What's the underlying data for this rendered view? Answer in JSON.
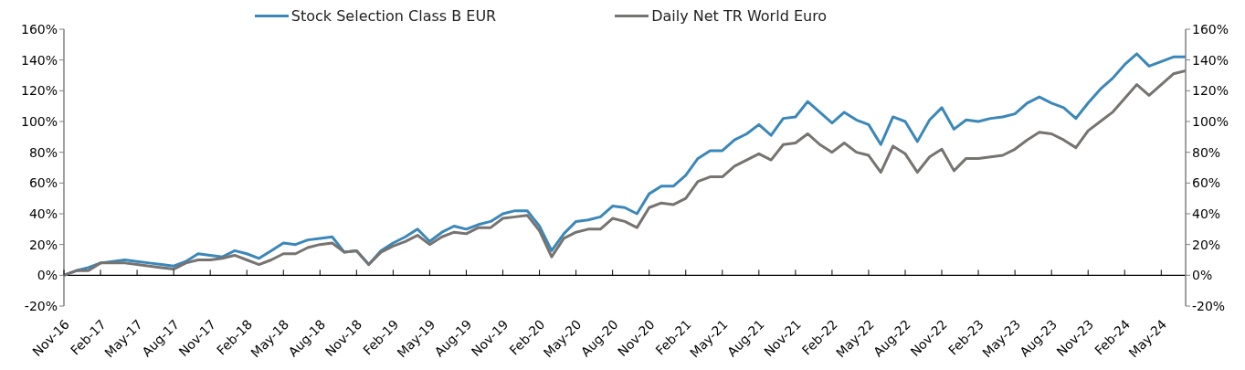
{
  "chart_data": {
    "type": "line",
    "categories": [
      "Nov-16",
      null,
      null,
      "Feb-17",
      null,
      null,
      "May-17",
      null,
      null,
      "Aug-17",
      null,
      null,
      "Nov-17",
      null,
      null,
      "Feb-18",
      null,
      null,
      "May-18",
      null,
      null,
      "Aug-18",
      null,
      null,
      "Nov-18",
      null,
      null,
      "Feb-19",
      null,
      null,
      "May-19",
      null,
      null,
      "Aug-19",
      null,
      null,
      "Nov-19",
      null,
      null,
      "Feb-20",
      null,
      null,
      "May-20",
      null,
      null,
      "Aug-20",
      null,
      null,
      "Nov-20",
      null,
      null,
      "Feb-21",
      null,
      null,
      "May-21",
      null,
      null,
      "Aug-21",
      null,
      null,
      "Nov-21",
      null,
      null,
      "Feb-22",
      null,
      null,
      "May-22",
      null,
      null,
      "Aug-22",
      null,
      null,
      "Nov-22",
      null,
      null,
      "Feb-23",
      null,
      null,
      "May-23",
      null,
      null,
      "Aug-23",
      null,
      null,
      "Nov-23",
      null,
      null,
      "Feb-24",
      null,
      null,
      "May-24",
      null,
      null
    ],
    "series": [
      {
        "name": "Stock Selection Class B EUR",
        "color": "#3a87b9",
        "values": [
          0,
          3,
          5,
          8,
          9,
          10,
          9,
          8,
          7,
          6,
          9,
          14,
          13,
          12,
          16,
          14,
          11,
          16,
          21,
          20,
          23,
          24,
          25,
          15,
          16,
          7,
          16,
          21,
          25,
          30,
          22,
          28,
          32,
          30,
          33,
          35,
          40,
          42,
          42,
          32,
          16,
          27,
          35,
          36,
          38,
          45,
          44,
          40,
          53,
          58,
          58,
          65,
          76,
          81,
          81,
          88,
          92,
          98,
          91,
          102,
          103,
          113,
          106,
          99,
          106,
          101,
          98,
          85,
          103,
          100,
          87,
          101,
          109,
          95,
          101,
          100,
          102,
          103,
          105,
          112,
          116,
          112,
          109,
          102,
          112,
          121,
          128,
          137,
          144,
          136,
          139,
          142,
          142
        ]
      },
      {
        "name": "Daily Net TR World Euro",
        "color": "#767370",
        "values": [
          0,
          3,
          3,
          8,
          8,
          8,
          7,
          6,
          5,
          4,
          8,
          10,
          10,
          11,
          13,
          10,
          7,
          10,
          14,
          14,
          18,
          20,
          21,
          15,
          16,
          7,
          15,
          19,
          22,
          26,
          20,
          25,
          28,
          27,
          31,
          31,
          37,
          38,
          39,
          29,
          12,
          24,
          28,
          30,
          30,
          37,
          35,
          31,
          44,
          47,
          46,
          50,
          61,
          64,
          64,
          71,
          75,
          79,
          75,
          85,
          86,
          92,
          85,
          80,
          86,
          80,
          78,
          67,
          84,
          79,
          67,
          77,
          82,
          68,
          76,
          76,
          77,
          78,
          82,
          88,
          93,
          92,
          88,
          83,
          94,
          100,
          106,
          115,
          124,
          117,
          124,
          131,
          133
        ]
      }
    ],
    "ylim": [
      -20,
      160
    ],
    "yticks": [
      {
        "value": -20,
        "label": "-20%"
      },
      {
        "value": 0,
        "label": "0%"
      },
      {
        "value": 20,
        "label": "20%"
      },
      {
        "value": 40,
        "label": "40%"
      },
      {
        "value": 60,
        "label": "60%"
      },
      {
        "value": 80,
        "label": "80%"
      },
      {
        "value": 100,
        "label": "100%"
      },
      {
        "value": 120,
        "label": "120%"
      },
      {
        "value": 140,
        "label": "140%"
      },
      {
        "value": 160,
        "label": "160%"
      }
    ],
    "y2lim": [
      -20,
      160
    ],
    "y2ticks": [
      {
        "value": -20,
        "label": "-20%"
      },
      {
        "value": 0,
        "label": "0%"
      },
      {
        "value": 20,
        "label": "20%"
      },
      {
        "value": 40,
        "label": "40%"
      },
      {
        "value": 60,
        "label": "60%"
      },
      {
        "value": 80,
        "label": "80%"
      },
      {
        "value": 100,
        "label": "100%"
      },
      {
        "value": 120,
        "label": "120%"
      },
      {
        "value": 140,
        "label": "140%"
      },
      {
        "value": 160,
        "label": "160%"
      }
    ],
    "legend": "top",
    "marker": "none",
    "line_style": "solid"
  }
}
